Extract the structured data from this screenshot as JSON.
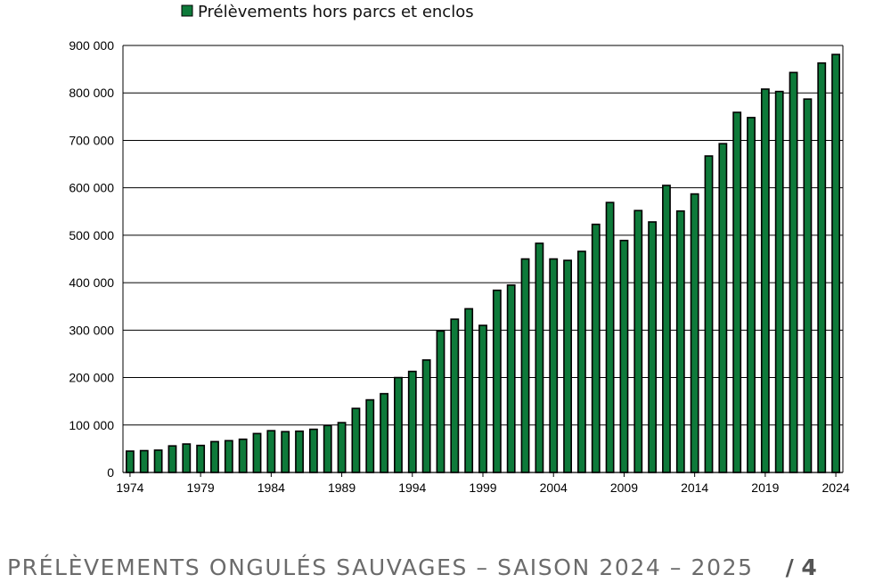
{
  "chart_data": {
    "type": "bar",
    "legend": {
      "label": "Prélèvements hors parcs et enclos",
      "position": "top",
      "color": "#0e7a3a"
    },
    "bar_color": "#0e7a3a",
    "bar_edge_color": "#000000",
    "grid": true,
    "ylim": [
      0,
      900000
    ],
    "y_ticks": [
      {
        "value": 0,
        "label": "0"
      },
      {
        "value": 100000,
        "label": "100 000"
      },
      {
        "value": 200000,
        "label": "200 000"
      },
      {
        "value": 300000,
        "label": "300 000"
      },
      {
        "value": 400000,
        "label": "400 000"
      },
      {
        "value": 500000,
        "label": "500 000"
      },
      {
        "value": 600000,
        "label": "600 000"
      },
      {
        "value": 700000,
        "label": "700 000"
      },
      {
        "value": 800000,
        "label": "800 000"
      },
      {
        "value": 900000,
        "label": "900 000"
      }
    ],
    "x_tick_labels": [
      "1974",
      "1979",
      "1984",
      "1989",
      "1994",
      "1999",
      "2004",
      "2009",
      "2014",
      "2019",
      "2024"
    ],
    "categories": [
      1974,
      1975,
      1976,
      1977,
      1978,
      1979,
      1980,
      1981,
      1982,
      1983,
      1984,
      1985,
      1986,
      1987,
      1988,
      1989,
      1990,
      1991,
      1992,
      1993,
      1994,
      1995,
      1996,
      1997,
      1998,
      1999,
      2000,
      2001,
      2002,
      2003,
      2004,
      2005,
      2006,
      2007,
      2008,
      2009,
      2010,
      2011,
      2012,
      2013,
      2014,
      2015,
      2016,
      2017,
      2018,
      2019,
      2020,
      2021,
      2022,
      2023,
      2024
    ],
    "values": [
      45000,
      46000,
      47000,
      56000,
      60000,
      57000,
      65000,
      67000,
      70000,
      82000,
      88000,
      86000,
      87000,
      91000,
      99000,
      105000,
      135000,
      153000,
      166000,
      200000,
      213000,
      237000,
      298000,
      323000,
      345000,
      310000,
      384000,
      395000,
      450000,
      483000,
      450000,
      447000,
      466000,
      523000,
      569000,
      489000,
      552000,
      528000,
      605000,
      551000,
      587000,
      667000,
      693000,
      759000,
      748000,
      808000,
      803000,
      843000,
      787000,
      863000,
      881000
    ]
  },
  "footer": {
    "title": "PRÉLÈVEMENTS ONGULÉS SAUVAGES – SAISON 2024 – 2025",
    "page": "/ 4"
  }
}
